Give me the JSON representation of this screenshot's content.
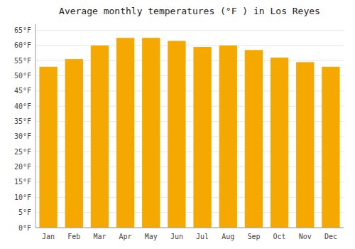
{
  "chart_data": {
    "type": "bar",
    "title": "Average monthly temperatures (°F ) in Los Reyes",
    "categories": [
      "Jan",
      "Feb",
      "Mar",
      "Apr",
      "May",
      "Jun",
      "Jul",
      "Aug",
      "Sep",
      "Oct",
      "Nov",
      "Dec"
    ],
    "values": [
      53,
      55.5,
      60,
      62.5,
      62.5,
      61.5,
      59.5,
      60,
      58.5,
      56,
      54.5,
      53
    ],
    "color": "#F5A800",
    "ylim": [
      0,
      67
    ],
    "yticks": [
      {
        "value": 0,
        "label": "0°F"
      },
      {
        "value": 5,
        "label": "5°F"
      },
      {
        "value": 10,
        "label": "10°F"
      },
      {
        "value": 15,
        "label": "15°F"
      },
      {
        "value": 20,
        "label": "20°F"
      },
      {
        "value": 25,
        "label": "25°F"
      },
      {
        "value": 30,
        "label": "30°F"
      },
      {
        "value": 35,
        "label": "35°F"
      },
      {
        "value": 40,
        "label": "40°F"
      },
      {
        "value": 45,
        "label": "45°F"
      },
      {
        "value": 50,
        "label": "50°F"
      },
      {
        "value": 55,
        "label": "55°F"
      },
      {
        "value": 60,
        "label": "60°F"
      },
      {
        "value": 65,
        "label": "65°F"
      }
    ],
    "grid": true
  }
}
